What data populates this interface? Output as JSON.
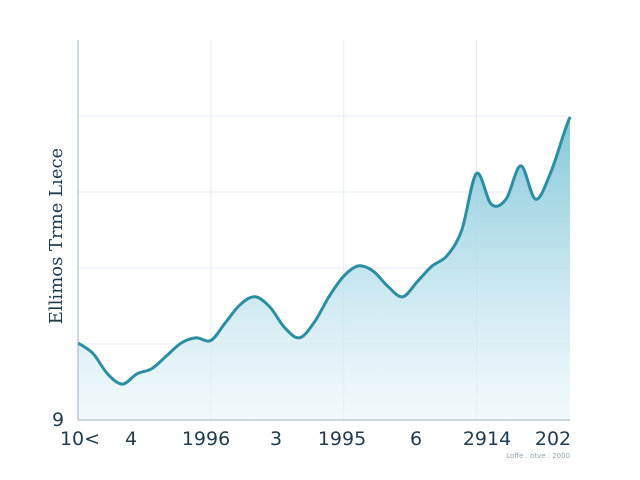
{
  "chart_data": {
    "type": "area",
    "ylabel": "Ellimos Trme Lıece",
    "y_tick_labels": [
      "9"
    ],
    "x_tick_labels": [
      "10<",
      "4",
      "1996",
      "3",
      "1995",
      "6",
      "2914",
      "202"
    ],
    "corner_note": "Loffe  . otve . 2000",
    "x": [
      0,
      3,
      6,
      9,
      12,
      15,
      18,
      21,
      24,
      27,
      30,
      33,
      36,
      39,
      42,
      45,
      48,
      51,
      54,
      57,
      60,
      63,
      66,
      69,
      72,
      75,
      78,
      81,
      84,
      87,
      90,
      93,
      96,
      99,
      100
    ],
    "values": [
      30,
      26,
      18,
      14,
      18,
      20,
      25,
      30,
      32,
      31,
      38,
      45,
      48,
      44,
      36,
      32,
      38,
      48,
      56,
      60,
      58,
      52,
      48,
      54,
      60,
      64,
      74,
      96,
      84,
      86,
      99,
      86,
      96,
      113,
      118
    ],
    "xlim": [
      0,
      100
    ],
    "ylim": [
      0,
      148
    ],
    "grid": true,
    "legend": "none",
    "colors": {
      "line": "#2b8ea1",
      "fill_top": "#7cc4d9",
      "fill_bottom": "#eaf6fa",
      "grid": "#e6edf1",
      "axis": "#9bb3bd"
    }
  }
}
